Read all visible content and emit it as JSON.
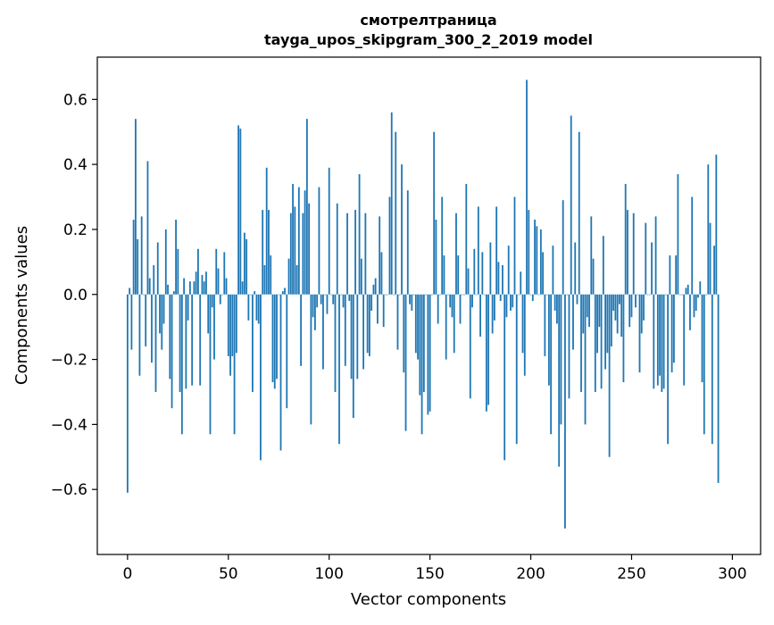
{
  "chart_data": {
    "type": "bar",
    "title": "смотрелтраница",
    "subtitle": "tayga_upos_skipgram_300_2_2019 model",
    "xlabel": "Vector components",
    "ylabel": "Components values",
    "xlim": [
      -15,
      314
    ],
    "ylim": [
      -0.8,
      0.73
    ],
    "xticks": [
      0,
      50,
      100,
      150,
      200,
      250,
      300
    ],
    "yticks": [
      -0.6,
      -0.4,
      -0.2,
      0.0,
      0.2,
      0.4,
      0.6
    ],
    "ytick_labels": [
      "−0.6",
      "−0.4",
      "−0.2",
      "0.0",
      "0.2",
      "0.4",
      "0.6"
    ],
    "bar_color": "#1f77b4",
    "grid": false,
    "values": [
      -0.61,
      0.02,
      -0.17,
      0.23,
      0.54,
      0.17,
      -0.25,
      0.24,
      0.0,
      -0.16,
      0.41,
      0.05,
      -0.21,
      0.09,
      -0.3,
      0.16,
      -0.12,
      -0.17,
      -0.09,
      0.2,
      0.03,
      -0.26,
      -0.35,
      0.01,
      0.23,
      0.14,
      -0.3,
      -0.43,
      0.05,
      -0.29,
      -0.08,
      0.04,
      -0.28,
      0.04,
      0.07,
      0.14,
      -0.28,
      0.06,
      0.04,
      0.07,
      -0.12,
      -0.43,
      -0.04,
      -0.2,
      0.14,
      0.08,
      -0.03,
      0.0,
      0.13,
      0.05,
      -0.19,
      -0.25,
      -0.19,
      -0.43,
      -0.18,
      0.52,
      0.51,
      0.04,
      0.19,
      0.17,
      -0.08,
      0.0,
      -0.3,
      0.01,
      -0.08,
      -0.09,
      -0.51,
      0.26,
      0.09,
      0.39,
      0.26,
      0.12,
      -0.27,
      -0.29,
      -0.26,
      0.0,
      -0.48,
      0.01,
      0.02,
      -0.35,
      0.11,
      0.25,
      0.34,
      0.27,
      0.09,
      0.33,
      -0.22,
      0.25,
      0.32,
      0.54,
      0.28,
      -0.4,
      -0.07,
      -0.11,
      -0.04,
      0.33,
      -0.03,
      -0.23,
      0.0,
      -0.06,
      0.39,
      0.0,
      -0.03,
      -0.3,
      0.28,
      -0.46,
      0.0,
      -0.04,
      -0.22,
      0.25,
      -0.02,
      -0.26,
      -0.38,
      0.26,
      -0.26,
      0.37,
      0.11,
      -0.23,
      0.25,
      -0.18,
      -0.19,
      -0.05,
      0.03,
      0.05,
      -0.09,
      0.24,
      0.13,
      -0.1,
      0.0,
      0.0,
      0.3,
      0.56,
      0.0,
      0.5,
      -0.17,
      0.0,
      0.4,
      -0.24,
      -0.42,
      0.32,
      -0.03,
      -0.05,
      0.0,
      -0.18,
      -0.2,
      -0.31,
      -0.43,
      -0.3,
      0.0,
      -0.37,
      -0.36,
      0.0,
      0.5,
      0.23,
      -0.09,
      0.0,
      0.3,
      0.12,
      -0.2,
      0.0,
      -0.04,
      -0.07,
      -0.18,
      0.25,
      0.12,
      -0.09,
      0.0,
      0.0,
      0.34,
      0.08,
      -0.32,
      -0.04,
      0.14,
      0.0,
      0.27,
      -0.13,
      0.13,
      0.0,
      -0.36,
      -0.34,
      0.16,
      -0.12,
      -0.08,
      0.27,
      0.1,
      -0.02,
      0.09,
      -0.51,
      -0.07,
      0.15,
      -0.05,
      -0.04,
      0.3,
      -0.46,
      0.0,
      0.07,
      -0.18,
      -0.25,
      0.66,
      0.26,
      0.0,
      -0.02,
      0.23,
      0.21,
      0.0,
      0.2,
      0.13,
      -0.19,
      0.0,
      -0.28,
      -0.43,
      0.15,
      -0.05,
      -0.09,
      -0.53,
      -0.4,
      0.29,
      -0.72,
      0.0,
      -0.32,
      0.55,
      -0.17,
      0.16,
      -0.03,
      0.5,
      -0.3,
      -0.12,
      -0.4,
      -0.07,
      -0.1,
      0.24,
      0.11,
      -0.3,
      -0.18,
      -0.1,
      -0.29,
      0.18,
      -0.23,
      -0.18,
      -0.5,
      -0.16,
      -0.05,
      -0.08,
      -0.12,
      -0.03,
      -0.13,
      -0.27,
      0.34,
      0.26,
      -0.1,
      -0.07,
      0.25,
      -0.04,
      0.0,
      -0.24,
      -0.12,
      -0.08,
      0.22,
      0.0,
      0.0,
      0.16,
      -0.29,
      0.24,
      -0.28,
      -0.25,
      -0.3,
      -0.29,
      0.0,
      -0.46,
      0.12,
      -0.24,
      -0.21,
      0.12,
      0.37,
      0.0,
      0.0,
      -0.28,
      0.02,
      0.03,
      -0.11,
      0.3,
      -0.07,
      -0.05,
      -0.01,
      0.04,
      -0.27,
      -0.43,
      0.0,
      0.4,
      0.22,
      -0.46,
      0.15,
      0.43,
      -0.58
    ]
  }
}
